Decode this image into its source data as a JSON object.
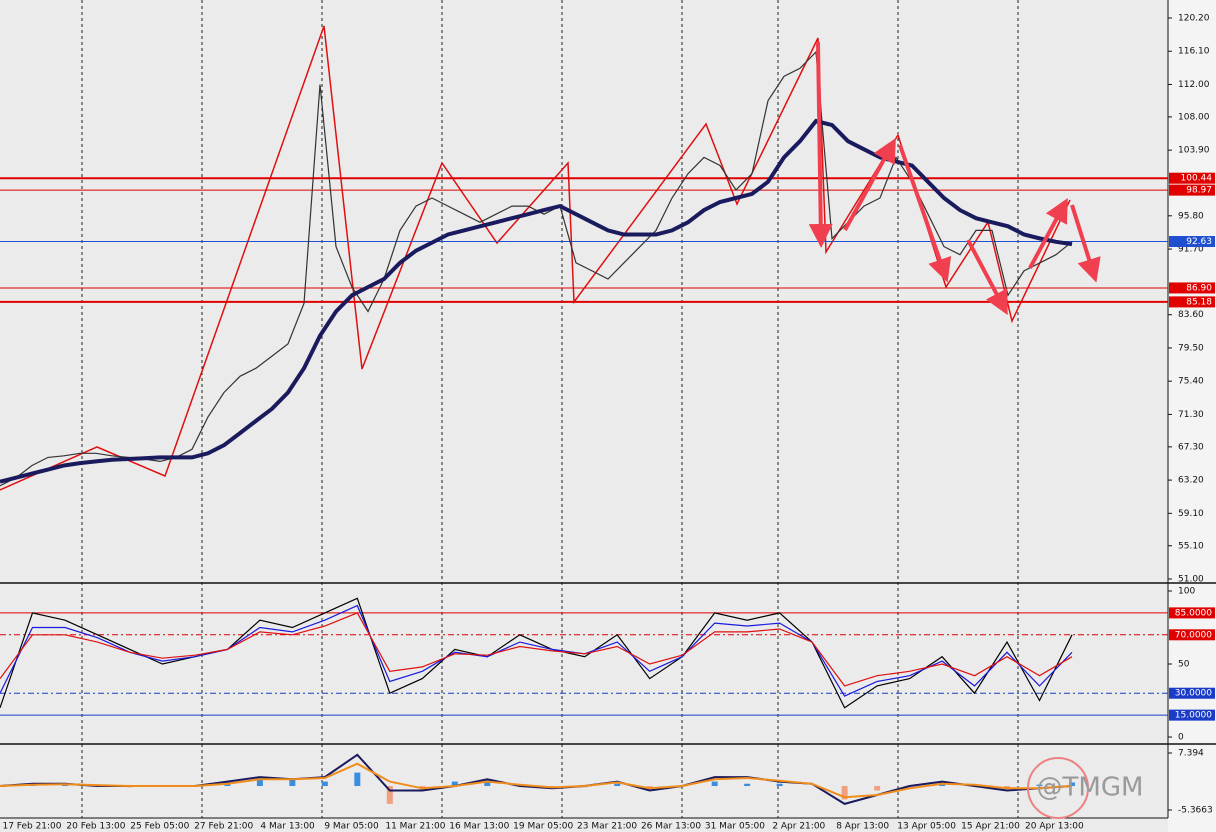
{
  "watermark": "@TMGM",
  "chart_data": [
    {
      "type": "line",
      "xticks_labels": [
        "17 Feb 21:00",
        "20 Feb 13:00",
        "25 Feb 05:00",
        "27 Feb 21:00",
        "4 Mar 13:00",
        "9 Mar 05:00",
        "11 Mar 21:00",
        "16 Mar 13:00",
        "19 Mar 05:00",
        "23 Mar 21:00",
        "26 Mar 13:00",
        "31 Mar 05:00",
        "2 Apr 21:00",
        "8 Apr 13:00",
        "13 Apr 05:00",
        "15 Apr 21:00",
        "20 Apr 13:00"
      ],
      "ylim": [
        50.63,
        122.42
      ],
      "yticks": [
        {
          "value": 120.2,
          "label": "120.20"
        },
        {
          "value": 116.1,
          "label": "116.10"
        },
        {
          "value": 112.0,
          "label": "112.00"
        },
        {
          "value": 108.0,
          "label": "108.00"
        },
        {
          "value": 103.9,
          "label": "103.90"
        },
        {
          "value": 95.8,
          "label": "95.80"
        },
        {
          "value": 91.7,
          "label": "91.70"
        },
        {
          "value": 83.6,
          "label": "83.60"
        },
        {
          "value": 79.5,
          "label": "79.50"
        },
        {
          "value": 75.4,
          "label": "75.40"
        },
        {
          "value": 71.3,
          "label": "71.30"
        },
        {
          "value": 67.3,
          "label": "67.30"
        },
        {
          "value": 63.2,
          "label": "63.20"
        },
        {
          "value": 59.1,
          "label": "59.10"
        },
        {
          "value": 55.1,
          "label": "55.10"
        },
        {
          "value": 51.0,
          "label": "51.00"
        }
      ],
      "levels": [
        {
          "value": 100.44,
          "label": "100.44",
          "color": "#e00000"
        },
        {
          "value": 98.97,
          "label": "98.97",
          "color": "#e00000"
        },
        {
          "value": 92.63,
          "label": "92.63",
          "color": "#2050d0"
        },
        {
          "value": 86.9,
          "label": "86.90",
          "color": "#e00000"
        },
        {
          "value": 85.18,
          "label": "85.18",
          "color": "#e00000"
        }
      ],
      "series": [
        {
          "color": "#333333",
          "values": [
            62.5,
            63.5,
            65,
            66,
            66.2,
            66.5,
            66.5,
            66.2,
            66,
            65.8,
            65.5,
            66,
            67,
            71,
            74,
            76,
            77,
            78.5,
            80,
            85,
            112,
            92,
            87,
            84,
            88,
            94,
            97,
            98,
            97,
            96,
            95,
            96,
            97,
            97,
            96,
            97,
            90,
            89,
            88,
            90,
            92,
            94,
            98,
            101,
            103,
            102,
            99,
            101,
            110,
            113,
            114,
            116,
            93,
            95,
            97,
            98,
            103,
            100,
            96,
            92,
            91,
            94,
            94,
            86,
            89,
            90,
            91,
            92.6
          ]
        },
        {
          "color": "#1a1a5e",
          "values": [
            63,
            63.5,
            64,
            64.5,
            65,
            65.3,
            65.5,
            65.7,
            65.8,
            65.9,
            66,
            66,
            66,
            66.5,
            67.5,
            69,
            70.5,
            72,
            74,
            77,
            81,
            84,
            86,
            87,
            88,
            90,
            91.5,
            92.5,
            93.5,
            94,
            94.5,
            95,
            95.5,
            96,
            96.5,
            97,
            96,
            95,
            94,
            93.5,
            93.5,
            93.5,
            94,
            95,
            96.5,
            97.5,
            98,
            98.5,
            100,
            103,
            105,
            107.5,
            107,
            105,
            104,
            103,
            102.5,
            102,
            100,
            98,
            96.5,
            95.5,
            95,
            94.5,
            93.5,
            93,
            92.6,
            92.3
          ]
        }
      ]
    },
    {
      "type": "line",
      "ylim": [
        -3.4,
        104.1
      ],
      "yticks": [
        100,
        50,
        0
      ],
      "levels": [
        {
          "value": 85,
          "label": "85.0000",
          "color": "#e00000"
        },
        {
          "value": 70,
          "label": "70.0000",
          "color": "#e00000"
        },
        {
          "value": 30,
          "label": "30.0000",
          "color": "#1a3cc8"
        },
        {
          "value": 15,
          "label": "15.0000",
          "color": "#1a3cc8"
        }
      ],
      "series": [
        {
          "color": "#000000",
          "values": [
            20,
            85,
            80,
            70,
            60,
            50,
            55,
            60,
            80,
            75,
            85,
            95,
            30,
            40,
            60,
            55,
            70,
            60,
            55,
            70,
            40,
            55,
            85,
            80,
            85,
            65,
            20,
            35,
            40,
            55,
            30,
            65,
            25,
            70
          ]
        },
        {
          "color": "#1a1ae0",
          "values": [
            30,
            75,
            75,
            68,
            58,
            52,
            55,
            60,
            75,
            72,
            80,
            90,
            38,
            45,
            58,
            55,
            65,
            60,
            57,
            65,
            45,
            55,
            78,
            76,
            78,
            65,
            28,
            38,
            42,
            52,
            35,
            58,
            35,
            58
          ]
        },
        {
          "color": "#e01010",
          "values": [
            40,
            70,
            70,
            65,
            58,
            54,
            56,
            60,
            72,
            70,
            76,
            85,
            45,
            48,
            57,
            56,
            62,
            59,
            57,
            62,
            50,
            56,
            72,
            72,
            74,
            65,
            35,
            42,
            45,
            50,
            42,
            55,
            42,
            55
          ]
        }
      ]
    },
    {
      "type": "macd",
      "ylim": [
        -7.16,
        8.96
      ],
      "yticks": [
        {
          "value": 7.394,
          "label": "7.394"
        },
        {
          "value": -5.3663,
          "label": "-5.3663"
        }
      ],
      "histogram": [
        0,
        0.5,
        0.3,
        0,
        -0.3,
        0,
        0.2,
        1,
        2,
        1.5,
        1,
        3,
        -4,
        -1,
        1,
        1.5,
        0,
        -0.5,
        -0.3,
        0.5,
        -1,
        0,
        1,
        0.5,
        0.5,
        0,
        -3,
        -1,
        0,
        1,
        0,
        -0.5,
        0.3,
        0.8
      ],
      "series": [
        {
          "color": "#1a1a5e",
          "values": [
            0,
            0.5,
            0.5,
            0,
            0,
            0,
            0,
            1,
            2,
            1.5,
            2,
            7,
            -1,
            -1,
            0,
            1.5,
            0,
            -0.5,
            0,
            1,
            -1,
            0,
            2,
            2,
            1,
            0.5,
            -4,
            -2,
            0,
            1,
            0,
            -1,
            -0.5,
            0
          ]
        },
        {
          "color": "#f08c1a",
          "values": [
            0,
            0.3,
            0.4,
            0.2,
            0,
            0,
            0,
            0.5,
            1.5,
            1.5,
            1.8,
            5,
            1,
            -0.5,
            0,
            1,
            0.3,
            -0.3,
            0,
            0.8,
            -0.5,
            0,
            1.5,
            1.8,
            1.2,
            0.5,
            -2.5,
            -2,
            -0.5,
            0.5,
            0.3,
            -0.5,
            -0.5,
            0
          ]
        }
      ]
    }
  ]
}
